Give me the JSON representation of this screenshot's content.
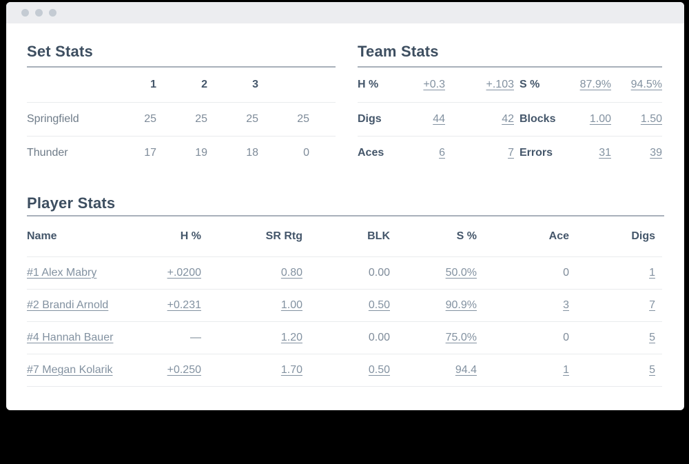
{
  "window": {
    "controls": [
      "close",
      "minimize",
      "maximize"
    ]
  },
  "set_stats": {
    "title": "Set Stats",
    "columns": [
      "",
      "1",
      "2",
      "3",
      ""
    ],
    "rows": [
      {
        "team": "Springfield",
        "sets": [
          "25",
          "25",
          "25",
          "25"
        ]
      },
      {
        "team": "Thunder",
        "sets": [
          "17",
          "19",
          "18",
          "0"
        ]
      }
    ]
  },
  "team_stats": {
    "title": "Team Stats",
    "rows": [
      {
        "cells": [
          "H %",
          "+0.3",
          "+.103",
          "S %",
          "87.9%",
          "94.5%"
        ]
      },
      {
        "cells": [
          "Digs",
          "44",
          "42",
          "Blocks",
          "1.00",
          "1.50"
        ]
      },
      {
        "cells": [
          "Aces",
          "6",
          "7",
          "Errors",
          "31",
          "39"
        ]
      }
    ]
  },
  "player_stats": {
    "title": "Player Stats",
    "columns": [
      "Name",
      "H %",
      "SR Rtg",
      "BLK",
      "S %",
      "Ace",
      "Digs"
    ],
    "rows": [
      {
        "cells": [
          "#1 Alex Mabry",
          "+.0200",
          "0.80",
          "0.00",
          "50.0%",
          "0",
          "1"
        ]
      },
      {
        "cells": [
          "#2 Brandi Arnold",
          "+0.231",
          "1.00",
          "0.50",
          "90.9%",
          "3",
          "7"
        ]
      },
      {
        "cells": [
          "#4 Hannah Bauer",
          "—",
          "1.20",
          "0.00",
          "75.0%",
          "0",
          "5"
        ]
      },
      {
        "cells": [
          "#7 Megan Kolarik",
          "+0.250",
          "1.70",
          "0.50",
          "94.4",
          "1",
          "5"
        ]
      }
    ]
  },
  "colors": {
    "heading": "#3D4E60",
    "label": "#44566A",
    "value": "#7E8B99",
    "link": "#8291A0",
    "titlebar": "#ECEDF0",
    "rule": "#A8B0BA"
  }
}
